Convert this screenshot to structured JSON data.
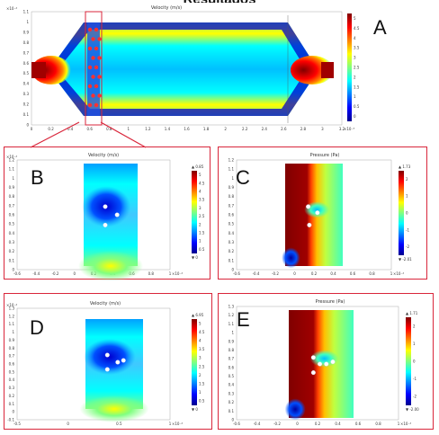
{
  "page": {
    "title": "Resultados"
  },
  "panels": [
    {
      "id": "A",
      "label": "A",
      "plot_title": "Velocity (m/s)",
      "kind": "velocity-channel",
      "scale_exp": "×10⁻⁴",
      "xunit": "×10⁻³",
      "colorbar_top": "",
      "colorbar_bottom": "",
      "colorbar_ticks": [
        "5",
        "4.5",
        "4",
        "3.5",
        "3",
        "2.5",
        "2",
        "1.5",
        "1",
        "0.5",
        "0"
      ],
      "x_ticks": [
        "0",
        "0.2",
        "0.4",
        "0.6",
        "0.8",
        "1",
        "1.2",
        "1.4",
        "1.6",
        "1.8",
        "2",
        "2.2",
        "2.4",
        "2.6",
        "2.8",
        "3",
        "3.2"
      ],
      "y_ticks": [
        "1.1",
        "1",
        "0.9",
        "0.8",
        "0.7",
        "0.6",
        "0.5",
        "0.4",
        "0.3",
        "0.2",
        "0.1",
        "0"
      ]
    },
    {
      "id": "B",
      "label": "B",
      "plot_title": "Velocity (m/s)",
      "kind": "velocity-detail",
      "scale_exp": "×10⁻⁴",
      "xunit": "×10⁻⁴",
      "colorbar_top": "▲ 0.85",
      "colorbar_bottom": "▼ 0",
      "colorbar_ticks": [
        "5",
        "4.5",
        "4",
        "3.5",
        "3",
        "2.5",
        "2",
        "1.5",
        "1",
        "0.5"
      ],
      "x_ticks": [
        "-0.6",
        "-0.4",
        "-0.2",
        "0",
        "0.2",
        "0.4",
        "0.6",
        "0.8",
        "1"
      ],
      "y_ticks": [
        "1.2",
        "1.1",
        "1",
        "0.9",
        "0.8",
        "0.7",
        "0.6",
        "0.5",
        "0.4",
        "0.3",
        "0.2",
        "0.1",
        "0"
      ]
    },
    {
      "id": "C",
      "label": "C",
      "plot_title": "Pressure (Pa)",
      "kind": "pressure-detail",
      "scale_exp": "",
      "xunit": "×10⁻⁴",
      "colorbar_top": "▲ 1.73",
      "colorbar_bottom": "▼ -2.01",
      "colorbar_ticks": [
        "2",
        "1",
        "0",
        "-1",
        "-2"
      ],
      "x_ticks": [
        "-0.6",
        "-0.4",
        "-0.2",
        "0",
        "0.2",
        "0.4",
        "0.6",
        "0.8",
        "1"
      ],
      "y_ticks": [
        "1.2",
        "1.1",
        "1",
        "0.9",
        "0.8",
        "0.7",
        "0.6",
        "0.5",
        "0.4",
        "0.3",
        "0.2",
        "0.1",
        "0"
      ]
    },
    {
      "id": "D",
      "label": "D",
      "plot_title": "Velocity (m/s)",
      "kind": "velocity-detail",
      "scale_exp": "×10⁻⁴",
      "xunit": "×10⁻⁴",
      "colorbar_top": "▲ 6.95",
      "colorbar_bottom": "▼ 0",
      "colorbar_ticks": [
        "5",
        "4.5",
        "4",
        "3.5",
        "3",
        "2.5",
        "2",
        "1.5",
        "1",
        "0.5"
      ],
      "x_ticks": [
        "-0.5",
        "0",
        "0.5",
        "1"
      ],
      "y_ticks": [
        "1.3",
        "1.2",
        "1.1",
        "1",
        "0.9",
        "0.8",
        "0.7",
        "0.6",
        "0.5",
        "0.4",
        "0.3",
        "0.2",
        "0.1",
        "0",
        "-0.1"
      ]
    },
    {
      "id": "E",
      "label": "E",
      "plot_title": "Pressure (Pa)",
      "kind": "pressure-detail",
      "scale_exp": "",
      "xunit": "×10⁻⁴",
      "colorbar_top": "▲ 1.71",
      "colorbar_bottom": "▼ -2.00",
      "colorbar_ticks": [
        "2",
        "1",
        "0",
        "-1",
        "-2"
      ],
      "x_ticks": [
        "-0.6",
        "-0.4",
        "-0.2",
        "0",
        "0.2",
        "0.4",
        "0.6",
        "0.8",
        "1"
      ],
      "y_ticks": [
        "1.3",
        "1.2",
        "1.1",
        "1",
        "0.9",
        "0.8",
        "0.7",
        "0.6",
        "0.5",
        "0.4",
        "0.3",
        "0.2",
        "0.1",
        "0"
      ]
    }
  ],
  "colors": {
    "border": "#d9263b",
    "jet": [
      "#00008f",
      "#0000ff",
      "#0080ff",
      "#00ffff",
      "#80ff80",
      "#ffff00",
      "#ff8000",
      "#ff0000",
      "#800000"
    ]
  }
}
